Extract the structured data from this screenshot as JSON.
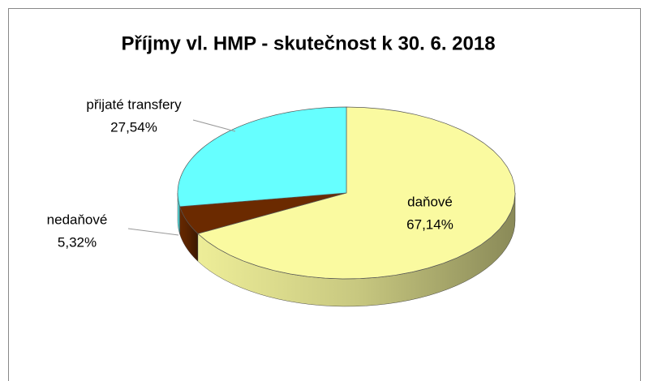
{
  "chart_data": {
    "type": "pie",
    "title": "Příjmy vl. HMP - skutečnost k 30. 6. 2018",
    "categories": [
      "daňové",
      "nedaňové",
      "přijaté transfery"
    ],
    "values": [
      67.14,
      5.32,
      27.54
    ],
    "value_labels": [
      "67,14%",
      "5,32%",
      "27,54%"
    ],
    "colors": [
      "#fafaa0",
      "#6b2a00",
      "#66ffff"
    ]
  }
}
